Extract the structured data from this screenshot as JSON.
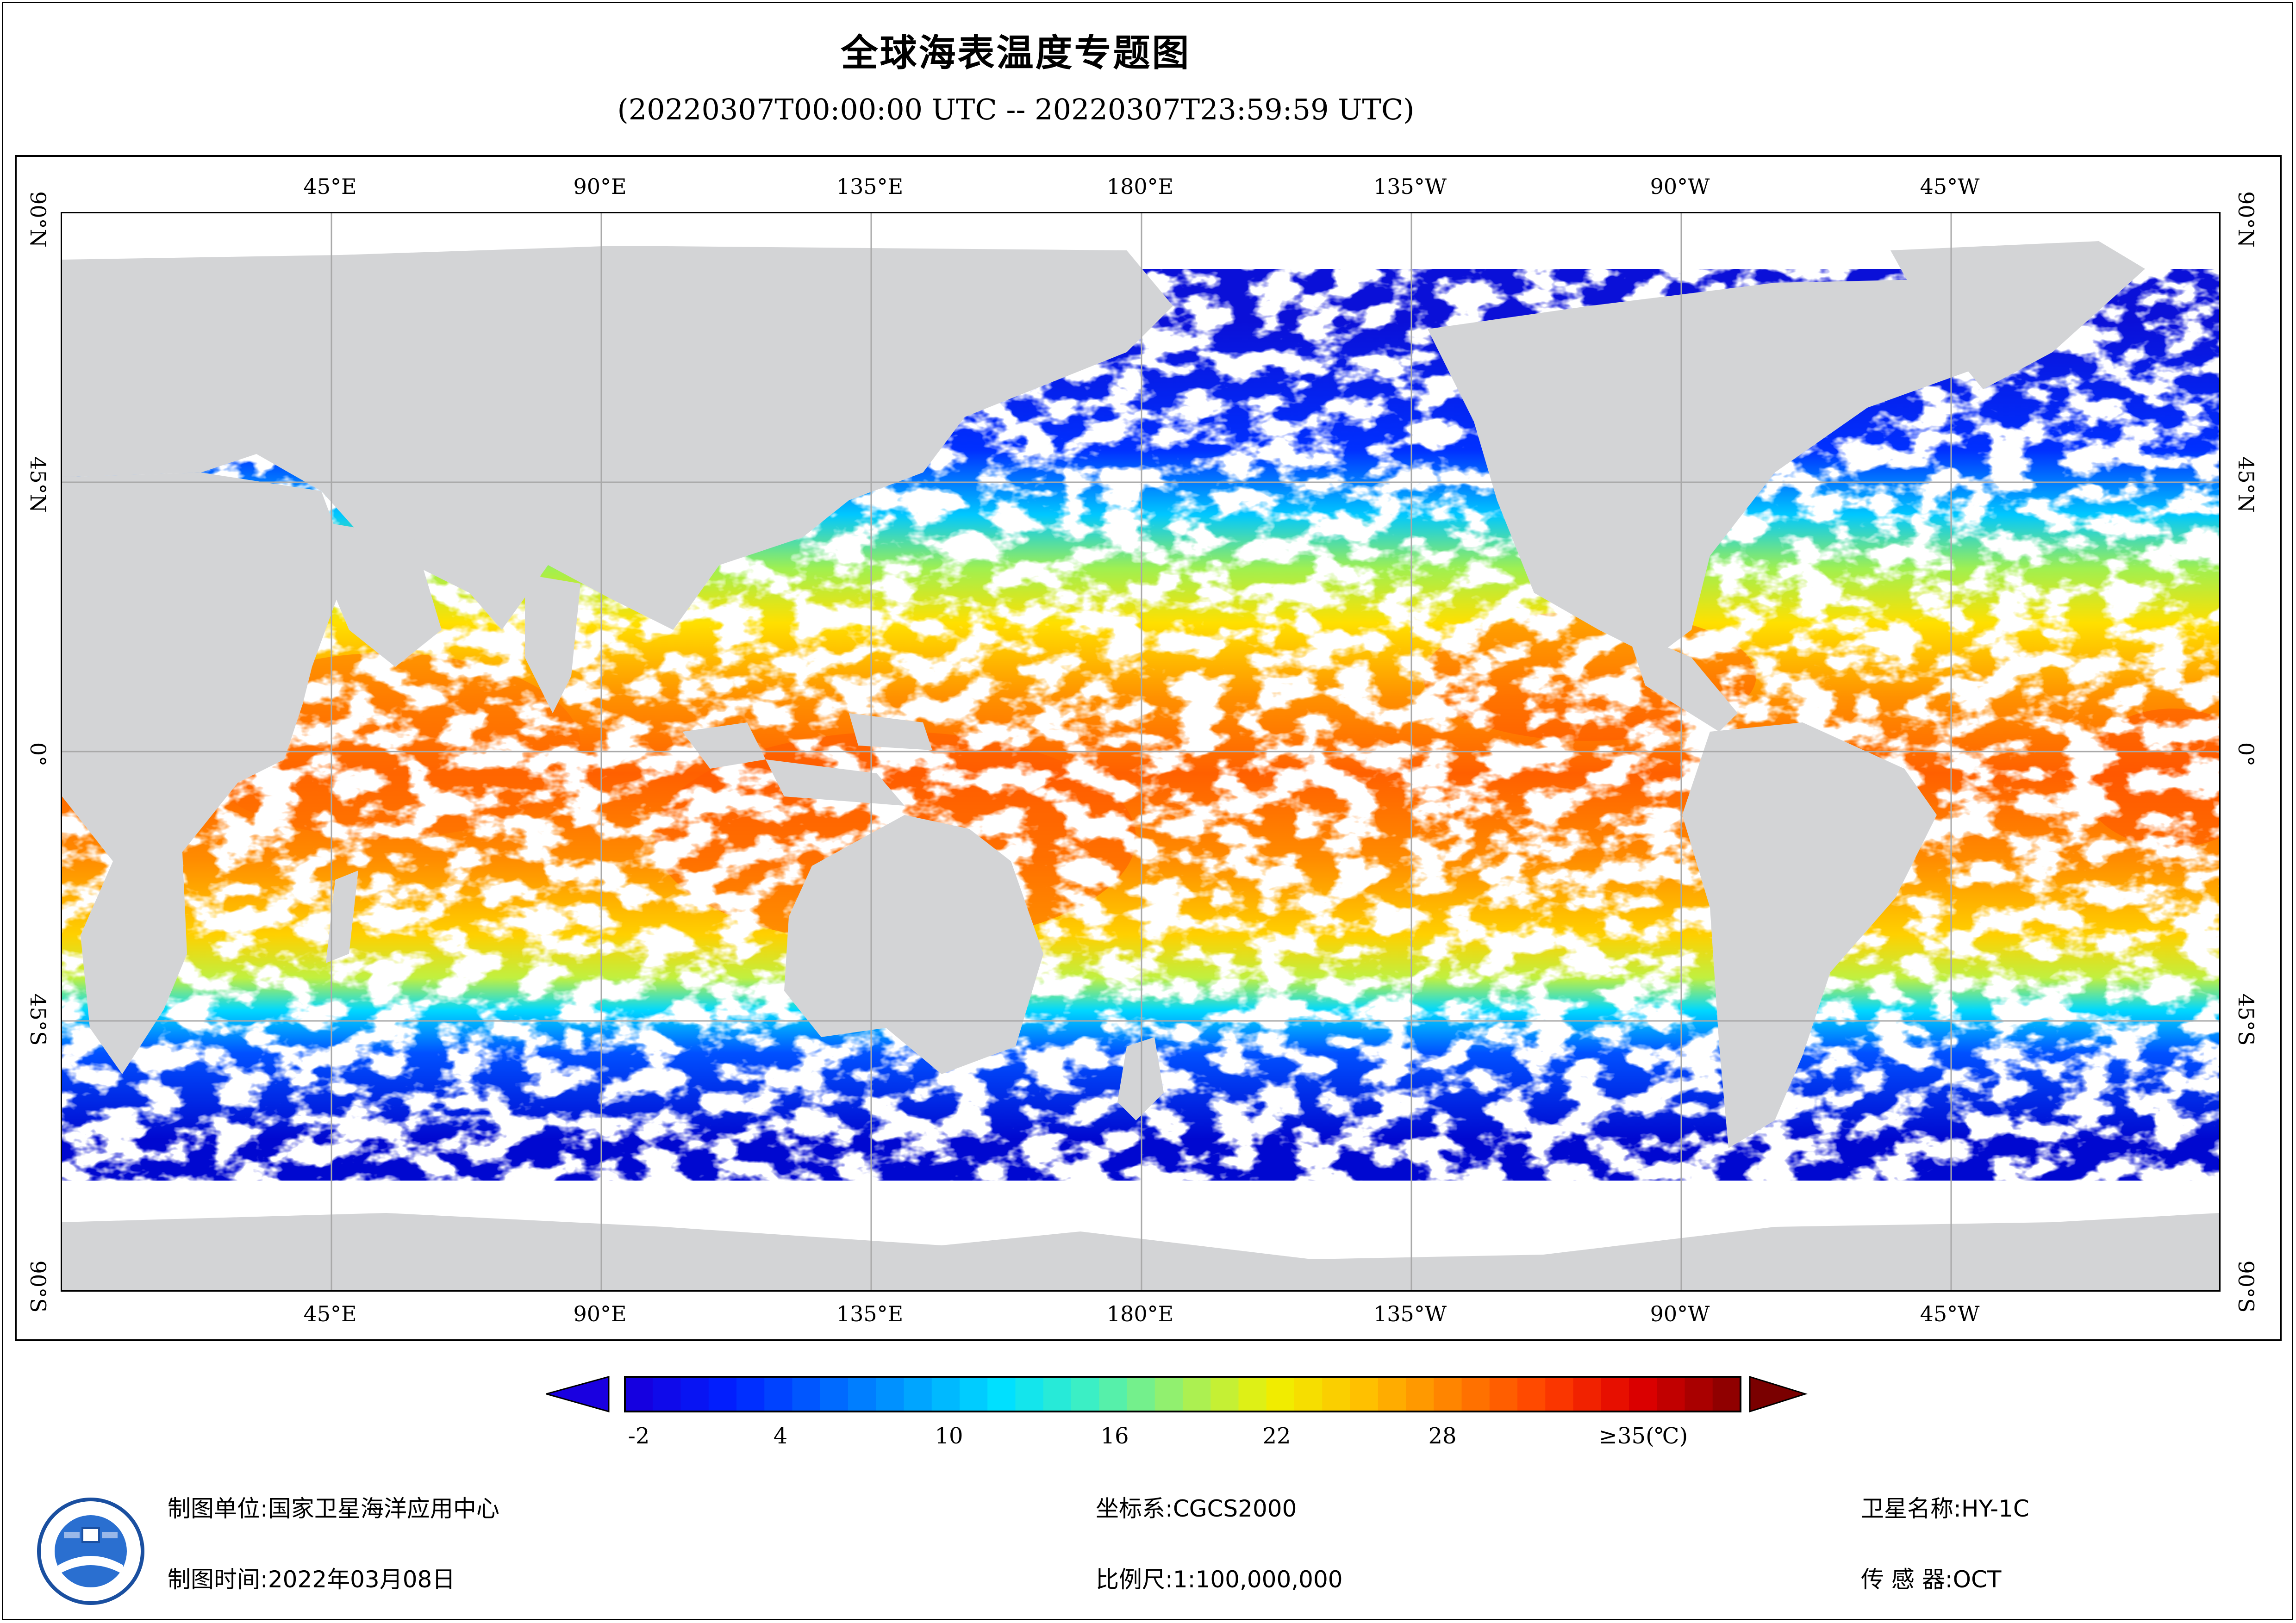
{
  "title": "全球海表温度专题图",
  "subtitle": "(20220307T00:00:00 UTC -- 20220307T23:59:59 UTC)",
  "axes": {
    "lon_labels": [
      "45°E",
      "90°E",
      "135°E",
      "180°E",
      "135°W",
      "90°W",
      "45°W"
    ],
    "lat_labels": [
      "90°N",
      "45°N",
      "0°",
      "45°S",
      "90°S"
    ]
  },
  "legend": {
    "tick_labels": [
      "-2",
      "4",
      "10",
      "16",
      "22",
      "28",
      "≥35(℃)"
    ],
    "colors": [
      "#1500e0",
      "#0020ff",
      "#0060ff",
      "#00a0ff",
      "#00e0ff",
      "#40f0c0",
      "#a0f060",
      "#f0f000",
      "#ffc000",
      "#ff8000",
      "#ff4000",
      "#e00000",
      "#900000"
    ]
  },
  "colors": {
    "land": "#d3d4d6",
    "no_data": "#ffffff",
    "grid": "#a9a9a9"
  },
  "info": {
    "unit_label": "制图单位:国家卫星海洋应用中心",
    "time_label": "制图时间:2022年03月08日",
    "crs_label": "坐标系:CGCS2000",
    "scale_label": "比例尺:1:100,000,000",
    "satellite_label": "卫星名称:HY-1C",
    "sensor_label": "传 感 器:OCT"
  },
  "logo": "nsoas-logo"
}
